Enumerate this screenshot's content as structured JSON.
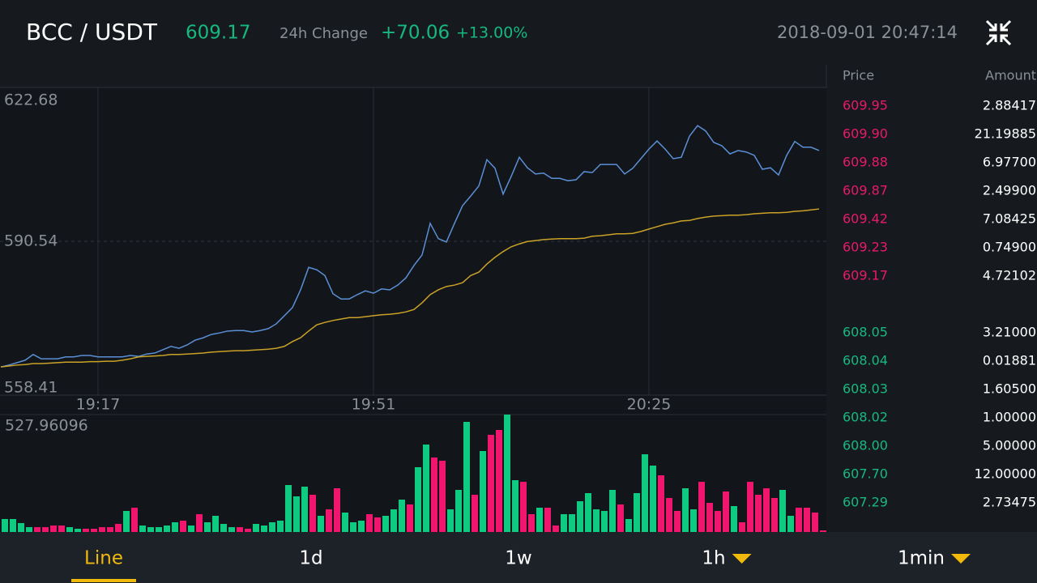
{
  "header": {
    "pair": "BCC / USDT",
    "last_price": "609.17",
    "change_label": "24h Change",
    "change": "+70.06",
    "change_percent": "+13.00%",
    "datetime": "2018-09-01 20:47:14"
  },
  "chart_data": [
    {
      "type": "line",
      "categories": [
        null,
        null,
        null,
        null,
        null,
        null,
        null,
        null,
        null,
        null,
        null,
        null,
        "19:17",
        null,
        null,
        null,
        null,
        null,
        null,
        null,
        null,
        null,
        null,
        null,
        null,
        null,
        null,
        null,
        null,
        null,
        null,
        null,
        null,
        null,
        null,
        null,
        null,
        null,
        null,
        null,
        null,
        null,
        null,
        null,
        null,
        null,
        "19:51",
        null,
        null,
        null,
        null,
        null,
        null,
        null,
        null,
        null,
        null,
        null,
        null,
        null,
        null,
        null,
        null,
        null,
        null,
        null,
        null,
        null,
        null,
        null,
        null,
        null,
        null,
        null,
        null,
        null,
        null,
        null,
        null,
        null,
        "20:25",
        null,
        null,
        null,
        null,
        null,
        null,
        null,
        null,
        null,
        null,
        null,
        null,
        null,
        null,
        null,
        null,
        null,
        null,
        null,
        null,
        null
      ],
      "series": [
        {
          "color": "#5b8fd6",
          "values": [
            564.3,
            564.7,
            565.2,
            565.7,
            566.9,
            566.0,
            566.0,
            566.0,
            566.4,
            566.4,
            566.7,
            566.7,
            566.4,
            566.4,
            566.4,
            566.4,
            566.7,
            566.5,
            567.0,
            567.2,
            567.9,
            568.6,
            568.2,
            568.9,
            569.9,
            570.4,
            571.1,
            571.4,
            571.8,
            571.9,
            571.9,
            571.6,
            571.9,
            572.3,
            573.3,
            575.0,
            576.7,
            580.4,
            585.1,
            584.6,
            583.4,
            579.6,
            578.5,
            578.5,
            579.4,
            580.2,
            579.7,
            580.6,
            580.4,
            581.4,
            582.9,
            585.5,
            587.7,
            594.3,
            591.1,
            590.4,
            594.3,
            598.0,
            600.0,
            602.1,
            607.6,
            605.8,
            600.4,
            604.1,
            608.1,
            605.9,
            604.6,
            604.8,
            603.7,
            603.7,
            603.2,
            603.4,
            605.1,
            604.9,
            606.6,
            606.6,
            606.6,
            604.6,
            605.8,
            607.8,
            609.8,
            611.5,
            609.8,
            607.8,
            608.1,
            612.5,
            614.7,
            613.6,
            611.2,
            610.5,
            608.8,
            609.5,
            609.2,
            608.5,
            605.6,
            605.9,
            604.4,
            608.5,
            611.4,
            610.2,
            610.2,
            609.5
          ]
        },
        {
          "color": "#c9a227",
          "values": [
            564.3,
            564.5,
            564.7,
            564.8,
            565.0,
            565.0,
            565.1,
            565.2,
            565.3,
            565.3,
            565.3,
            565.4,
            565.4,
            565.5,
            565.5,
            565.7,
            566.0,
            566.4,
            566.5,
            566.6,
            566.7,
            566.9,
            566.9,
            567.0,
            567.1,
            567.2,
            567.4,
            567.5,
            567.6,
            567.7,
            567.7,
            567.8,
            567.9,
            568.0,
            568.2,
            568.6,
            569.6,
            570.4,
            571.8,
            573.1,
            573.6,
            574.0,
            574.3,
            574.6,
            574.6,
            574.8,
            575.0,
            575.2,
            575.3,
            575.5,
            575.8,
            576.3,
            577.7,
            579.4,
            580.4,
            581.1,
            581.4,
            581.9,
            583.4,
            584.1,
            585.8,
            587.2,
            588.4,
            589.4,
            590.0,
            590.5,
            590.7,
            590.9,
            591.0,
            591.1,
            591.1,
            591.1,
            591.2,
            591.6,
            591.7,
            591.9,
            592.1,
            592.1,
            592.2,
            592.6,
            593.1,
            593.6,
            594.1,
            594.4,
            594.8,
            594.9,
            595.3,
            595.6,
            595.8,
            595.9,
            596.0,
            596.0,
            596.1,
            596.3,
            596.4,
            596.5,
            596.5,
            596.6,
            596.8,
            596.9,
            597.1,
            597.3
          ]
        }
      ],
      "ylim": [
        558.41,
        622.68
      ],
      "yticks": [
        558.41,
        590.54,
        622.68
      ],
      "grid": true
    },
    {
      "type": "bar",
      "values": [
        58.3,
        58.3,
        40.1,
        21.8,
        21.8,
        21.8,
        29.1,
        29.1,
        21.8,
        14.6,
        14.6,
        14.6,
        21.8,
        21.8,
        36.4,
        94.7,
        109.2,
        29.1,
        21.8,
        21.8,
        29.1,
        43.7,
        51.0,
        29.1,
        80.1,
        43.7,
        72.8,
        36.4,
        21.8,
        21.8,
        14.6,
        36.4,
        29.1,
        43.7,
        51.0,
        211.2,
        160.2,
        203.9,
        167.5,
        72.8,
        101.9,
        196.6,
        87.4,
        43.7,
        51.0,
        80.1,
        65.5,
        72.8,
        101.9,
        145.6,
        123.8,
        291.3,
        393.2,
        335.0,
        320.4,
        101.9,
        189.3,
        495.2,
        167.5,
        364.1,
        436.9,
        458.8,
        527.96096,
        233.0,
        225.7,
        80.1,
        109.2,
        109.2,
        29.1,
        80.1,
        80.1,
        138.4,
        174.8,
        101.9,
        94.7,
        189.3,
        123.8,
        58.3,
        174.8,
        349.5,
        298.6,
        254.9,
        152.9,
        94.7,
        196.6,
        101.9,
        225.7,
        131.1,
        94.7,
        182.1,
        116.5,
        43.7,
        225.7,
        167.5,
        196.6,
        152.9,
        189.3,
        72.8,
        109.2,
        109.2,
        87.4,
        7.3
      ],
      "colors": [
        "#0ecb81",
        "#0ecb81",
        "#0ecb81",
        "#0ecb81",
        "#f0166e",
        "#f0166e",
        "#f0166e",
        "#f0166e",
        "#0ecb81",
        "#0ecb81",
        "#f0166e",
        "#f0166e",
        "#f0166e",
        "#f0166e",
        "#f0166e",
        "#0ecb81",
        "#f0166e",
        "#0ecb81",
        "#0ecb81",
        "#0ecb81",
        "#0ecb81",
        "#0ecb81",
        "#f0166e",
        "#0ecb81",
        "#f0166e",
        "#0ecb81",
        "#0ecb81",
        "#0ecb81",
        "#0ecb81",
        "#f0166e",
        "#f0166e",
        "#0ecb81",
        "#0ecb81",
        "#0ecb81",
        "#0ecb81",
        "#0ecb81",
        "#0ecb81",
        "#0ecb81",
        "#f0166e",
        "#0ecb81",
        "#f0166e",
        "#f0166e",
        "#0ecb81",
        "#0ecb81",
        "#0ecb81",
        "#f0166e",
        "#f0166e",
        "#0ecb81",
        "#0ecb81",
        "#0ecb81",
        "#f0166e",
        "#0ecb81",
        "#0ecb81",
        "#f0166e",
        "#f0166e",
        "#0ecb81",
        "#0ecb81",
        "#0ecb81",
        "#f0166e",
        "#0ecb81",
        "#f0166e",
        "#f0166e",
        "#0ecb81",
        "#0ecb81",
        "#f0166e",
        "#f0166e",
        "#0ecb81",
        "#f0166e",
        "#f0166e",
        "#0ecb81",
        "#0ecb81",
        "#0ecb81",
        "#0ecb81",
        "#0ecb81",
        "#0ecb81",
        "#0ecb81",
        "#f0166e",
        "#0ecb81",
        "#0ecb81",
        "#0ecb81",
        "#0ecb81",
        "#f0166e",
        "#f0166e",
        "#f0166e",
        "#0ecb81",
        "#0ecb81",
        "#f0166e",
        "#f0166e",
        "#f0166e",
        "#f0166e",
        "#0ecb81",
        "#f0166e",
        "#f0166e",
        "#f0166e",
        "#f0166e",
        "#f0166e",
        "#0ecb81",
        "#0ecb81",
        "#f0166e",
        "#f0166e",
        "#f0166e",
        "#f0166e"
      ],
      "ylim": [
        0,
        527.96096
      ],
      "yticks": [
        527.96096
      ]
    }
  ],
  "order_book": {
    "headers": [
      "Price",
      "Amount"
    ],
    "asks": [
      [
        "609.95",
        "2.88417"
      ],
      [
        "609.90",
        "21.19885"
      ],
      [
        "609.88",
        "6.97700"
      ],
      [
        "609.87",
        "2.49900"
      ],
      [
        "609.42",
        "7.08425"
      ],
      [
        "609.23",
        "0.74900"
      ],
      [
        "609.17",
        "4.72102"
      ]
    ],
    "bids": [
      [
        "608.05",
        "3.21000"
      ],
      [
        "608.04",
        "0.01881"
      ],
      [
        "608.03",
        "1.60500"
      ],
      [
        "608.02",
        "1.00000"
      ],
      [
        "608.00",
        "5.00000"
      ],
      [
        "607.70",
        "12.00000"
      ],
      [
        "607.29",
        "2.73475"
      ]
    ],
    "ask_color": "#e8196b",
    "bid_color": "#17b87e"
  },
  "tabs": {
    "items": [
      {
        "label": "Line"
      },
      {
        "label": "1d"
      },
      {
        "label": "1w"
      },
      {
        "label": "1h",
        "dropdown": true
      },
      {
        "label": "1min",
        "dropdown": true
      }
    ],
    "active": 0
  }
}
